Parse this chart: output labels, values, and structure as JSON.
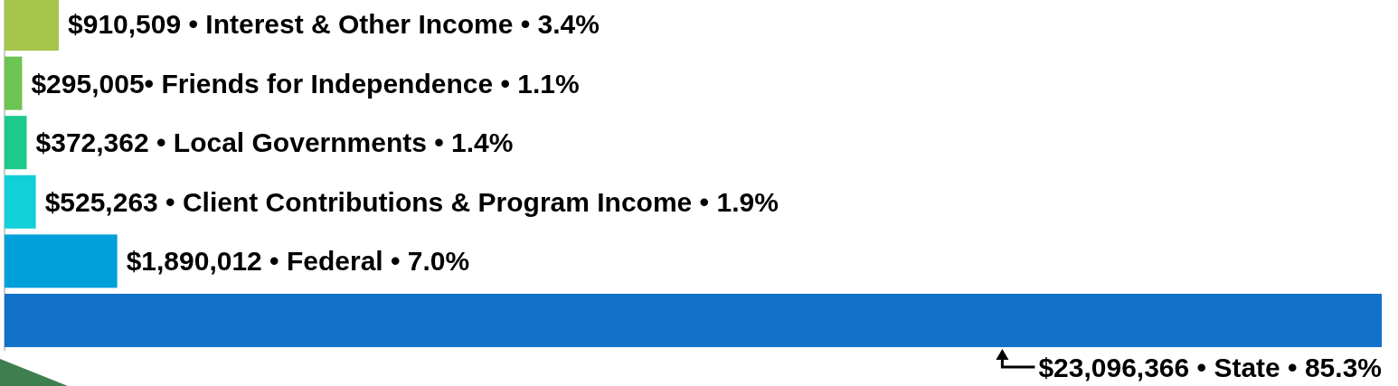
{
  "chart_data": {
    "type": "bar",
    "orientation": "horizontal",
    "categories": [
      null,
      null,
      null,
      null,
      null,
      null
    ],
    "values": [
      910509,
      295005,
      372362,
      525263,
      1890012,
      23096366
    ],
    "colors": [
      "#a5c64a",
      "#6cc452",
      "#1ccb8c",
      "#12d0d8",
      "#00a0da",
      "#1271c8"
    ],
    "value_labels": [
      "$910,509 • Interest & Other Income • 3.4%",
      "$295,005• Friends for Independence • 1.1%",
      "$372,362 • Local Governments • 1.4%",
      "$525,263 • Client Contributions & Program Income • 1.9%",
      "$1,890,012 • Federal • 7.0%",
      "$23,096,366 • State • 85.3%"
    ]
  }
}
